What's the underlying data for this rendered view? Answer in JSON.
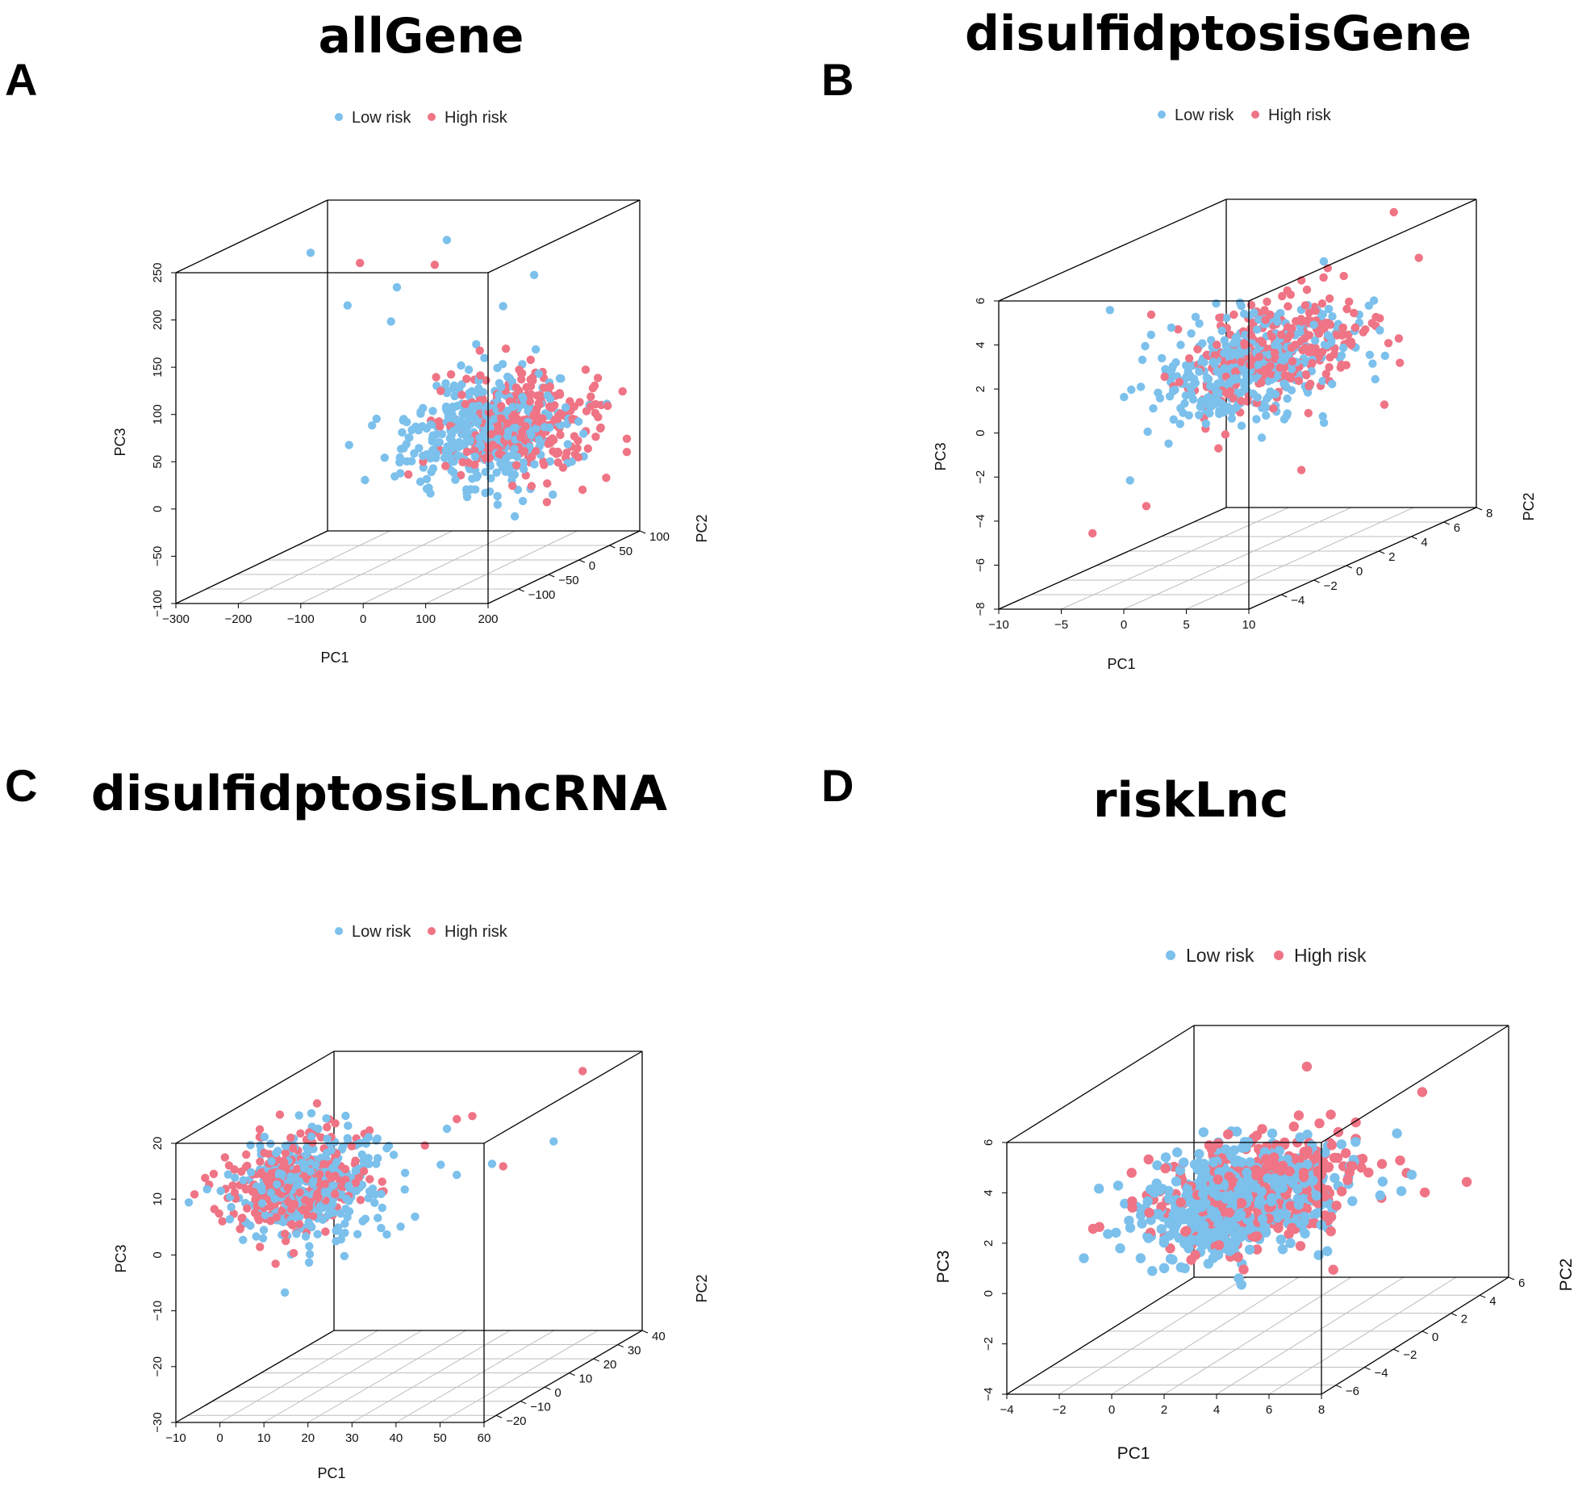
{
  "colors": {
    "low_risk": "#7cc0ec",
    "high_risk": "#ef7485"
  },
  "chart_data": [
    {
      "type": "scatter",
      "panel_letter": "A",
      "title": "allGene",
      "legend": [
        "Low risk",
        "High risk"
      ],
      "legend_position": "top",
      "xlabel": "PC1",
      "ylabel": "PC2",
      "zlabel": "PC3",
      "xlim": [
        -300,
        200
      ],
      "ylim": [
        -150,
        100
      ],
      "zlim": [
        -100,
        250
      ],
      "xticks": [
        "−300",
        "−200",
        "−100",
        "0",
        "100",
        "200"
      ],
      "yticks": [
        "−100",
        "−50",
        "0",
        "50",
        "100"
      ],
      "zticks": [
        "−100",
        "−50",
        "0",
        "50",
        "100",
        "150",
        "200",
        "250"
      ],
      "cluster": {
        "center": [
          80,
          0,
          40
        ],
        "spread": [
          55,
          35,
          28
        ],
        "shift": [
          30,
          0,
          5
        ]
      },
      "outliers_low": [
        [
          -230,
          0,
          225
        ],
        [
          -150,
          60,
          170
        ],
        [
          -200,
          30,
          160
        ],
        [
          -70,
          60,
          220
        ],
        [
          -110,
          -60,
          40
        ],
        [
          20,
          60,
          150
        ],
        [
          60,
          70,
          180
        ],
        [
          -140,
          40,
          140
        ]
      ],
      "outliers_high": [
        [
          -180,
          30,
          205
        ],
        [
          -70,
          40,
          200
        ]
      ]
    },
    {
      "type": "scatter",
      "panel_letter": "B",
      "title": "disulfidptosisGene",
      "legend": [
        "Low risk",
        "High risk"
      ],
      "legend_position": "top",
      "xlabel": "PC1",
      "ylabel": "PC2",
      "zlabel": "PC3",
      "xlim": [
        -10,
        10
      ],
      "ylim": [
        -6,
        8
      ],
      "zlim": [
        -8,
        6
      ],
      "xticks": [
        "−10",
        "−5",
        "0",
        "5",
        "10"
      ],
      "yticks": [
        "−4",
        "−2",
        "0",
        "2",
        "4",
        "6",
        "8"
      ],
      "zticks": [
        "−8",
        "−6",
        "−4",
        "−2",
        "0",
        "2",
        "4",
        "6"
      ],
      "cluster": {
        "center": [
          2,
          1,
          1
        ],
        "spread": [
          2.6,
          2.0,
          1.1
        ],
        "shift": [
          0.6,
          0.4,
          0.2
        ]
      },
      "outliers_low": [
        [
          -6,
          -1,
          -3.8
        ],
        [
          6,
          2,
          3
        ],
        [
          3,
          4,
          4.5
        ]
      ],
      "outliers_high": [
        [
          -9,
          -1,
          -6.2
        ],
        [
          -6,
          0,
          -5.3
        ],
        [
          6,
          6,
          6.5
        ],
        [
          8,
          6,
          4
        ],
        [
          9,
          4,
          1
        ],
        [
          9,
          -2,
          -3
        ]
      ]
    },
    {
      "type": "scatter",
      "panel_letter": "C",
      "title": "disulfidptosisLncRNA",
      "legend": [
        "Low risk",
        "High risk"
      ],
      "legend_position": "top",
      "xlabel": "PC1",
      "ylabel": "PC2",
      "zlabel": "PC3",
      "xlim": [
        -10,
        60
      ],
      "ylim": [
        -25,
        40
      ],
      "zlim": [
        -30,
        20
      ],
      "xticks": [
        "−10",
        "0",
        "10",
        "20",
        "30",
        "40",
        "50",
        "60"
      ],
      "yticks": [
        "−20",
        "−10",
        "0",
        "10",
        "20",
        "30",
        "40"
      ],
      "zticks": [
        "−30",
        "−20",
        "−10",
        "0",
        "10",
        "20"
      ],
      "cluster": {
        "center": [
          5,
          0,
          6
        ],
        "spread": [
          7,
          8,
          4.5
        ],
        "shift": [
          -2,
          0,
          0
        ]
      },
      "outliers_low": [
        [
          40,
          0,
          8
        ],
        [
          48,
          0,
          10
        ],
        [
          35,
          5,
          15
        ],
        [
          30,
          -5,
          0
        ],
        [
          20,
          -10,
          -4
        ],
        [
          12,
          -20,
          -8
        ],
        [
          62,
          0,
          14
        ],
        [
          25,
          10,
          -2
        ]
      ],
      "outliers_high": [
        [
          38,
          10,
          16
        ],
        [
          45,
          10,
          7
        ],
        [
          52,
          30,
          19
        ],
        [
          40,
          0,
          18
        ],
        [
          30,
          5,
          12
        ]
      ]
    },
    {
      "type": "scatter",
      "panel_letter": "D",
      "title": "riskLnc",
      "legend": [
        "Low risk",
        "High risk"
      ],
      "legend_position": "top",
      "xlabel": "PC1",
      "ylabel": "PC2",
      "zlabel": "PC3",
      "xlim": [
        -4,
        8
      ],
      "ylim": [
        -7,
        6
      ],
      "zlim": [
        -4,
        6
      ],
      "xticks": [
        "−4",
        "−2",
        "0",
        "2",
        "4",
        "6",
        "8"
      ],
      "yticks": [
        "−6",
        "−4",
        "−2",
        "0",
        "2",
        "4",
        "6"
      ],
      "zticks": [
        "−4",
        "−2",
        "0",
        "2",
        "4",
        "6"
      ],
      "cluster": {
        "center": [
          2.2,
          -1.5,
          2.0
        ],
        "spread": [
          1.6,
          1.8,
          0.9
        ],
        "shift": [
          0.3,
          0.3,
          0.2
        ]
      },
      "outliers_low": [
        [
          -2.5,
          -2,
          2.5
        ],
        [
          6.5,
          2,
          1.5
        ]
      ],
      "outliers_high": [
        [
          7,
          2,
          0.8
        ],
        [
          7.5,
          4,
          0.5
        ],
        [
          8,
          0,
          5.5
        ],
        [
          2.5,
          2,
          5.8
        ]
      ]
    }
  ]
}
